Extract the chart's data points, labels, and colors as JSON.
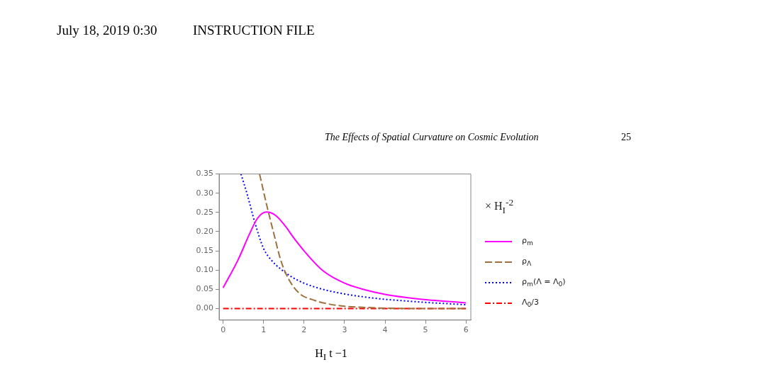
{
  "chart_data": {
    "type": "line",
    "xlabel": "H$_{I}$ t −1",
    "legend_title": "× H$_{I}$$^{-2}$",
    "legend": "right",
    "grid": false,
    "marker": "none",
    "annotations": [
      "July 18, 2019 0:30",
      "INSTRUCTION FILE",
      "The Effects of Spatial Curvature on Cosmic Evolution",
      "25"
    ],
    "xlim": [
      -0.1,
      6.12
    ],
    "ylim": [
      -0.03,
      0.35
    ],
    "xticks": [
      0,
      1,
      2,
      3,
      4,
      5,
      6
    ],
    "yticks": [
      {
        "value": 0,
        "label": "0.00"
      },
      0.05,
      {
        "value": 0.1,
        "label": "0.10"
      },
      0.15,
      {
        "value": 0.2,
        "label": "0.20"
      },
      0.25,
      {
        "value": 0.3,
        "label": "0.30"
      },
      0.35
    ],
    "series": [
      {
        "name": "ρ$_{m}$",
        "color": "#ff00ff",
        "line_style": "solid",
        "x": [
          0,
          0.37,
          0.66,
          0.85,
          1.07,
          1.3,
          1.54,
          1.75,
          2.0,
          2.47,
          3.0,
          3.5,
          4.0,
          4.5,
          5.0,
          5.5,
          6.0
        ],
        "values": [
          0.054,
          0.127,
          0.196,
          0.235,
          0.251,
          0.242,
          0.214,
          0.183,
          0.15,
          0.098,
          0.066,
          0.049,
          0.037,
          0.029,
          0.023,
          0.019,
          0.015
        ]
      },
      {
        "name": "ρ$_{Λ}$",
        "color": "#a0703c",
        "line_style": "dashed",
        "x": [
          0.9,
          1.07,
          1.25,
          1.42,
          1.6,
          1.89,
          2.24,
          2.6,
          3.0,
          3.5,
          4.0,
          5.0,
          6.0
        ],
        "values": [
          0.35,
          0.272,
          0.196,
          0.127,
          0.08,
          0.039,
          0.022,
          0.012,
          0.006,
          0.003,
          0.001,
          0.0,
          0.0
        ]
      },
      {
        "name": "ρ$_{m}$(Λ = Λ$_{0}$)",
        "color": "#0000ff",
        "line_style": "dotted",
        "x": [
          0.44,
          0.6,
          0.78,
          1.0,
          1.2,
          1.42,
          1.7,
          2.0,
          2.5,
          3.0,
          3.5,
          4.0,
          4.5,
          5.0,
          5.5,
          6.0
        ],
        "values": [
          0.35,
          0.295,
          0.225,
          0.156,
          0.125,
          0.103,
          0.082,
          0.066,
          0.049,
          0.038,
          0.03,
          0.024,
          0.02,
          0.016,
          0.013,
          0.01
        ]
      },
      {
        "name": "Λ$_{0}$/3",
        "color": "#ff0000",
        "line_style": "dashdot",
        "x": [
          0,
          6
        ],
        "values": [
          0,
          0
        ]
      }
    ]
  }
}
